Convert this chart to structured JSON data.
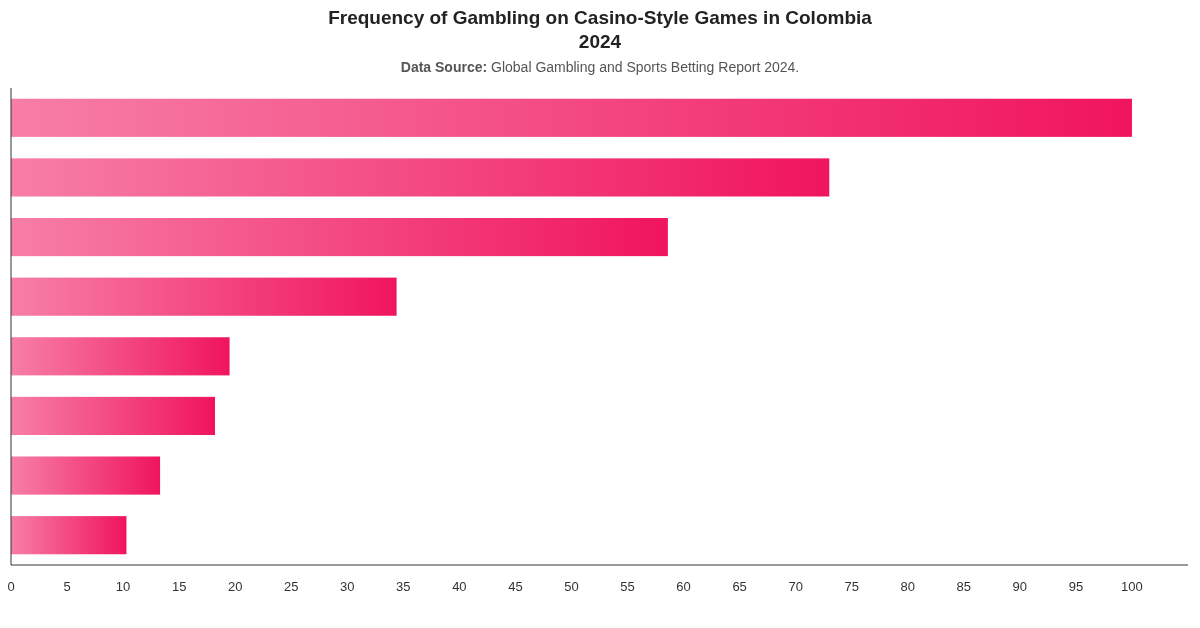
{
  "chart_data": {
    "type": "bar",
    "orientation": "horizontal",
    "title": "Frequency of Gambling on Casino-Style Games in Colombia 2024",
    "subtitle": "Data Source: Global Gambling and Sports Betting Report 2024.",
    "categories": [
      null,
      null,
      null,
      null,
      null,
      null,
      null,
      null
    ],
    "values": [
      100,
      73,
      58.6,
      34.4,
      19.5,
      18.2,
      13.3,
      10.3
    ],
    "color": "#f0145f",
    "xlim": [
      0,
      105
    ],
    "xticks": [
      0,
      5,
      10,
      15,
      20,
      25,
      30,
      35,
      40,
      45,
      50,
      55,
      60,
      65,
      70,
      75,
      80,
      85,
      90,
      95,
      100
    ],
    "grid": false
  }
}
